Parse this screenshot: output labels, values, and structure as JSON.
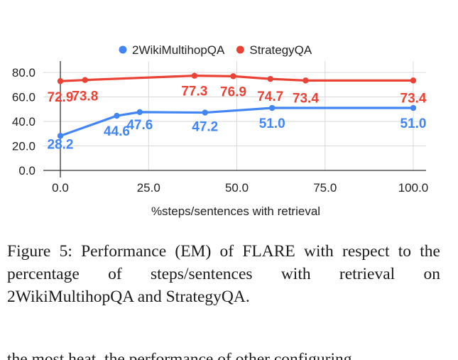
{
  "chart_data": {
    "type": "line",
    "xlabel": "%steps/sentences with retrieval",
    "ylabel": "",
    "xlim": [
      0,
      100
    ],
    "ylim": [
      0,
      80
    ],
    "x_ticks": [
      "0.0",
      "25.0",
      "50.0",
      "75.0",
      "100.0"
    ],
    "y_ticks": [
      "0.0",
      "20.0",
      "40.0",
      "60.0",
      "80.0"
    ],
    "grid": true,
    "legend": "top",
    "series": [
      {
        "name": "2WikiMultihopQA",
        "color": "#4285f4",
        "x": [
          0,
          16,
          22.5,
          41,
          60,
          100
        ],
        "y": [
          28.2,
          44.6,
          47.6,
          47.2,
          51.0,
          51.0
        ],
        "labels": [
          "28.2",
          "44.6",
          "47.6",
          "47.2",
          "51.0",
          "51.0"
        ]
      },
      {
        "name": "StrategyQA",
        "color": "#ea4335",
        "x": [
          0,
          7,
          38,
          49,
          59.5,
          69.5,
          100
        ],
        "y": [
          72.9,
          73.8,
          77.3,
          76.9,
          74.7,
          73.4,
          73.4
        ],
        "labels": [
          "72.9",
          "73.8",
          "77.3",
          "76.9",
          "74.7",
          "73.4",
          "73.4"
        ]
      }
    ]
  },
  "caption": {
    "text": "Figure 5: Performance (EM) of FLARE with respect to the percentage of steps/sentences with retrieval on 2WikiMultihopQA and StrategyQA."
  },
  "next_text": "the most heat, the performance of other configuring"
}
